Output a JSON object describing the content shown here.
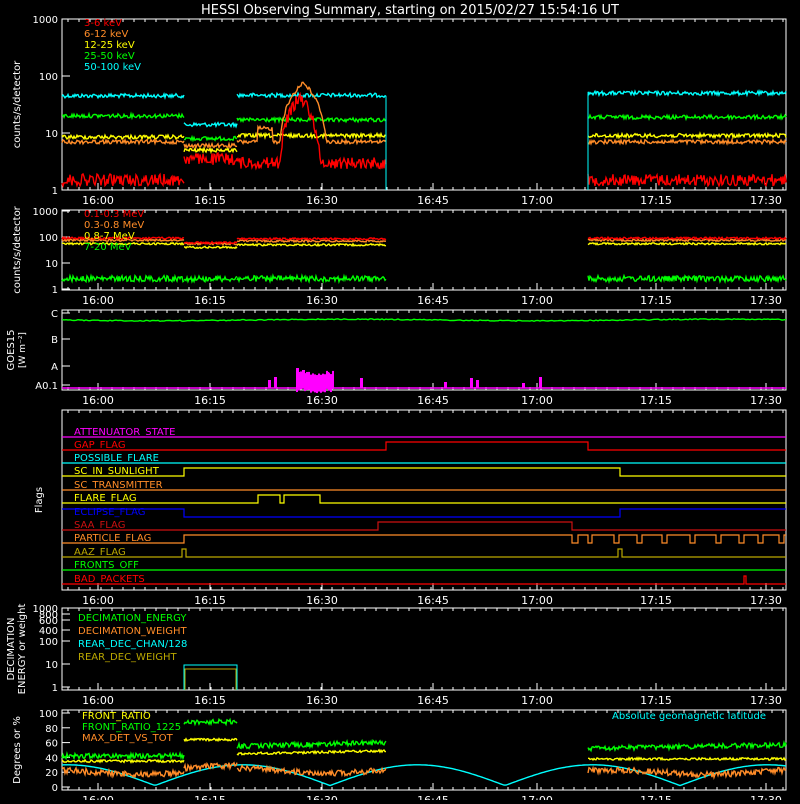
{
  "title": "HESSI Observing Summary, starting on 2015/02/27 15:54:16 UT",
  "time_ticks": [
    "16:00",
    "16:15",
    "16:30",
    "16:45",
    "17:00",
    "17:15",
    "17:30"
  ],
  "colors": {
    "red": "#ff0000",
    "orange": "#ff8c28",
    "yellow": "#ffff00",
    "green": "#00ff00",
    "cyan": "#00ffff",
    "magenta": "#ff00ff",
    "blue": "#0000ff",
    "olive": "#bba800",
    "white": "#ffffff",
    "darkred": "#cc1010"
  },
  "chart_data": [
    {
      "type": "line",
      "ylabel": "counts/s/detector",
      "yticks": [
        "1",
        "10",
        "100",
        "1000"
      ],
      "ylim": [
        1,
        1000
      ],
      "yscale": "log",
      "legend_placement": "top-left",
      "series": [
        {
          "name": "3-6 keV",
          "color": "#ff0000"
        },
        {
          "name": "6-12 keV",
          "color": "#ff8c28"
        },
        {
          "name": "12-25 keV",
          "color": "#ffff00"
        },
        {
          "name": "25-50 keV",
          "color": "#00ff00"
        },
        {
          "name": "50-100 keV",
          "color": "#00ffff"
        }
      ]
    },
    {
      "type": "line",
      "ylabel": "counts/s/detector",
      "yticks": [
        "1",
        "10",
        "100",
        "1000"
      ],
      "ylim": [
        1,
        1000
      ],
      "yscale": "log",
      "legend_placement": "top-left",
      "series": [
        {
          "name": "0.1-0.3 MeV",
          "color": "#ff0000"
        },
        {
          "name": "0.3-0.8 MeV",
          "color": "#ff8c28"
        },
        {
          "name": "0.8-7 MeV",
          "color": "#ffff00"
        },
        {
          "name": "7-20 MeV",
          "color": "#00ff00"
        }
      ]
    },
    {
      "type": "line",
      "ylabel": "GOES15",
      "ylabel2": "[W m⁻²]",
      "yticks": [
        "A0.1",
        "A",
        "B",
        "C"
      ],
      "series": [
        {
          "color": "#00ff00"
        },
        {
          "color": "#ff00ff"
        }
      ]
    },
    {
      "type": "line",
      "ylabel": "Flags",
      "flags": [
        {
          "name": "ATTENUATOR_STATE",
          "color": "#ff00ff"
        },
        {
          "name": "GAP_FLAG",
          "color": "#ff0000"
        },
        {
          "name": "POSSIBLE_FLARE",
          "color": "#00ffff"
        },
        {
          "name": "SC_IN_SUNLIGHT",
          "color": "#ffff00"
        },
        {
          "name": "SC_TRANSMITTER",
          "color": "#ff8c28"
        },
        {
          "name": "FLARE_FLAG",
          "color": "#ffff00"
        },
        {
          "name": "ECLIPSE_FLAG",
          "color": "#0000ff"
        },
        {
          "name": "SAA_FLAG",
          "color": "#cc1010"
        },
        {
          "name": "PARTICLE_FLAG",
          "color": "#ff8c28"
        },
        {
          "name": "AAZ_FLAG",
          "color": "#bba800"
        },
        {
          "name": "FRONTS_OFF",
          "color": "#00ff00"
        },
        {
          "name": "BAD_PACKETS",
          "color": "#ff0000"
        }
      ]
    },
    {
      "type": "line",
      "ylabel": "DECIMATION",
      "ylabel2": "ENERGY or weight",
      "yticks": [
        "1",
        "10",
        "100",
        "400",
        "600",
        "800",
        "1000"
      ],
      "series": [
        {
          "name": "DECIMATION_ENERGY",
          "color": "#00ff00"
        },
        {
          "name": "DECIMATION_WEIGHT",
          "color": "#ff8c28"
        },
        {
          "name": "REAR_DEC_CHAN/128",
          "color": "#00ffff"
        },
        {
          "name": "REAR_DEC_WEIGHT",
          "color": "#bba800"
        }
      ]
    },
    {
      "type": "line",
      "ylabel": "Degrees or %",
      "yticks": [
        "0",
        "20",
        "40",
        "60",
        "80",
        "100"
      ],
      "ylim": [
        0,
        100
      ],
      "series": [
        {
          "name": "FRONT_RATIO",
          "color": "#ffff00"
        },
        {
          "name": "FRONT_RATIO_1225",
          "color": "#00ff00"
        },
        {
          "name": "MAX_DET_VS_TOT",
          "color": "#ff8c28"
        },
        {
          "name": "Absolute geomagnetic latitude",
          "color": "#00ffff"
        }
      ]
    }
  ]
}
